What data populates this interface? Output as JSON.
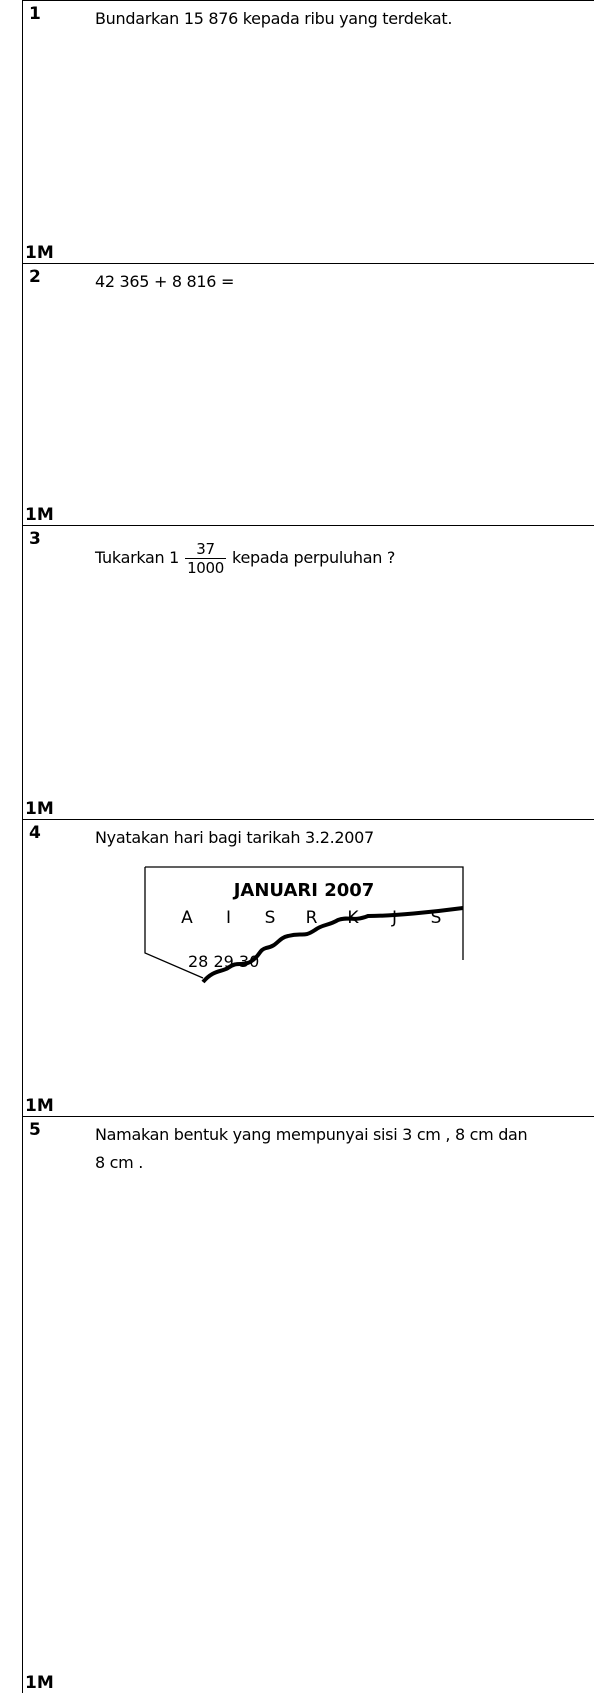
{
  "questions": [
    {
      "number": "1",
      "text": "Bundarkan  15 876 kepada ribu yang terdekat.",
      "mark": "1M"
    },
    {
      "number": "2",
      "text": "42 365  +  8 816  =",
      "mark": "1M"
    },
    {
      "number": "3",
      "text_before": "Tukarkan 1",
      "numerator": "37",
      "denominator": "1000",
      "text_after": "kepada perpuluhan ?",
      "mark": "1M"
    },
    {
      "number": "4",
      "text": "Nyatakan hari bagi tarikah 3.2.2007",
      "mark": "1M",
      "calendar": {
        "title": "JANUARI 2007",
        "days": [
          "A",
          "I",
          "S",
          "R",
          "K",
          "J",
          "S"
        ],
        "dates": "28 29 30"
      }
    },
    {
      "number": "5",
      "text": "Namakan bentuk yang mempunyai sisi 3 cm , 8 cm dan 8 cm .",
      "mark": "1M"
    }
  ]
}
